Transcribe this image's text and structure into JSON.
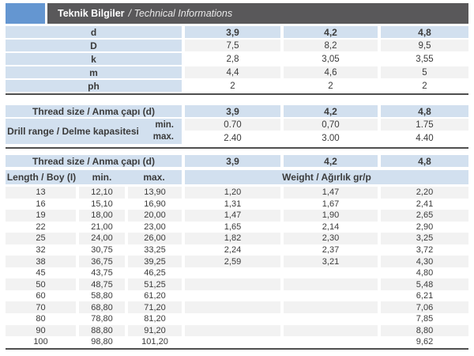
{
  "page_title": {
    "tr": "Teknik Bilgiler",
    "en": "/ Technical Informations"
  },
  "colors": {
    "accent_blue": "#6496d1",
    "header_dark": "#59585a",
    "row_blue": "#d2e0ef",
    "row_gray": "#f2f2f2",
    "line_dark": "#4f4f4f"
  },
  "sizes_table": {
    "rows": [
      {
        "label": "d",
        "values": [
          "3,9",
          "4,2",
          "4,8"
        ]
      },
      {
        "label": "D",
        "values": [
          "7,5",
          "8,2",
          "9,5"
        ]
      },
      {
        "label": "k",
        "values": [
          "2,8",
          "3,05",
          "3,55"
        ]
      },
      {
        "label": "m",
        "values": [
          "4,4",
          "4,6",
          "5"
        ]
      },
      {
        "label": "ph",
        "values": [
          "2",
          "2",
          "2"
        ]
      }
    ]
  },
  "drill_table": {
    "thread_label": "Thread size / Anma çapı (d)",
    "thread_values": [
      "3,9",
      "4,2",
      "4,8"
    ],
    "range_label": "Drill range / Delme kapasitesi",
    "min_label": "min.",
    "max_label": "max.",
    "min_values": [
      "0.70",
      "0,70",
      "1.75"
    ],
    "max_values": [
      "2.40",
      "3.00",
      "4.40"
    ]
  },
  "length_table": {
    "thread_label": "Thread size / Anma çapı (d)",
    "thread_values": [
      "3,9",
      "4,2",
      "4,8"
    ],
    "length_label": "Length / Boy (I)",
    "min_label": "min.",
    "max_label": "max.",
    "weight_label": "Weight / Ağırlık gr/p",
    "rows": [
      {
        "length": "13",
        "min": "12,10",
        "max": "13,90",
        "w1": "1,20",
        "w2": "1,47",
        "w3": "2,20"
      },
      {
        "length": "16",
        "min": "15,10",
        "max": "16,90",
        "w1": "1,31",
        "w2": "1,67",
        "w3": "2,41"
      },
      {
        "length": "19",
        "min": "18,00",
        "max": "20,00",
        "w1": "1,47",
        "w2": "1,90",
        "w3": "2,65"
      },
      {
        "length": "22",
        "min": "21,00",
        "max": "23,00",
        "w1": "1,65",
        "w2": "2,14",
        "w3": "2,90"
      },
      {
        "length": "25",
        "min": "24,00",
        "max": "26,00",
        "w1": "1,82",
        "w2": "2,30",
        "w3": "3,25"
      },
      {
        "length": "32",
        "min": "30,75",
        "max": "33,25",
        "w1": "2,24",
        "w2": "2,37",
        "w3": "3,72"
      },
      {
        "length": "38",
        "min": "36,75",
        "max": "39,25",
        "w1": "2,59",
        "w2": "3,21",
        "w3": "4,30"
      },
      {
        "length": "45",
        "min": "43,75",
        "max": "46,25",
        "w1": "",
        "w2": "",
        "w3": "4,80"
      },
      {
        "length": "50",
        "min": "48,75",
        "max": "51,25",
        "w1": "",
        "w2": "",
        "w3": "5,48"
      },
      {
        "length": "60",
        "min": "58,80",
        "max": "61,20",
        "w1": "",
        "w2": "",
        "w3": "6,21"
      },
      {
        "length": "70",
        "min": "68,80",
        "max": "71,20",
        "w1": "",
        "w2": "",
        "w3": "7,06"
      },
      {
        "length": "80",
        "min": "78,80",
        "max": "81,20",
        "w1": "",
        "w2": "",
        "w3": "7,85"
      },
      {
        "length": "90",
        "min": "88,80",
        "max": "91,20",
        "w1": "",
        "w2": "",
        "w3": "8,80"
      },
      {
        "length": "100",
        "min": "98,80",
        "max": "101,20",
        "w1": "",
        "w2": "",
        "w3": "9,62"
      }
    ]
  }
}
